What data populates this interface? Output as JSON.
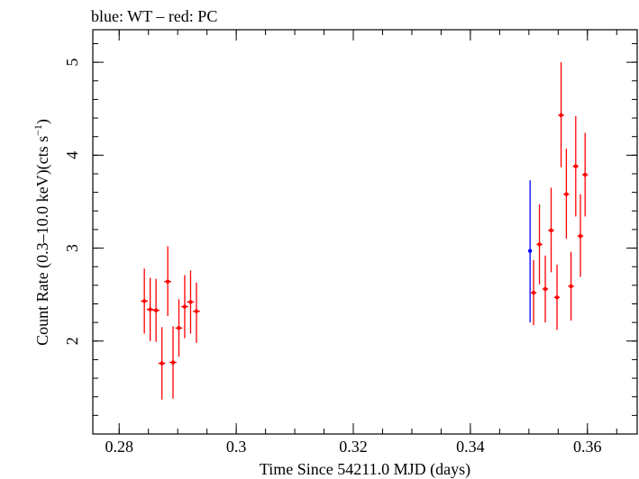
{
  "chart_data": {
    "type": "scatter",
    "title": "blue: WT – red: PC",
    "xlabel": "Time Since 54211.0 MJD (days)",
    "ylabel_parts": {
      "main": "Count Rate (0.3–10.0 keV)(cts s",
      "sup": "−1",
      "end": ")"
    },
    "xlim": [
      0.2755,
      0.3685
    ],
    "ylim": [
      1.0,
      5.35
    ],
    "x_ticks_major": [
      0.28,
      0.3,
      0.32,
      0.34,
      0.36
    ],
    "x_tick_labels": [
      "0.28",
      "0.3",
      "0.32",
      "0.34",
      "0.36"
    ],
    "x_ticks_minor_step": 0.005,
    "y_ticks_major": [
      2,
      3,
      4,
      5
    ],
    "y_tick_labels": [
      "2",
      "3",
      "4",
      "5"
    ],
    "y_ticks_minor_step": 0.2,
    "series": [
      {
        "color": "#0000ff",
        "points": [
          {
            "x": 0.3502,
            "xerr": 0.0002,
            "y": 2.97,
            "ylo": 2.2,
            "yhi": 3.73
          }
        ]
      },
      {
        "color": "#ff0000",
        "points": [
          {
            "x": 0.2843,
            "xerr": 0.0006,
            "y": 2.43,
            "ylo": 2.08,
            "yhi": 2.78
          },
          {
            "x": 0.2853,
            "xerr": 0.0006,
            "y": 2.34,
            "ylo": 2.0,
            "yhi": 2.68
          },
          {
            "x": 0.2863,
            "xerr": 0.0006,
            "y": 2.33,
            "ylo": 1.99,
            "yhi": 2.67
          },
          {
            "x": 0.2873,
            "xerr": 0.0006,
            "y": 1.76,
            "ylo": 1.37,
            "yhi": 2.15
          },
          {
            "x": 0.2883,
            "xerr": 0.0006,
            "y": 2.64,
            "ylo": 2.27,
            "yhi": 3.02
          },
          {
            "x": 0.2892,
            "xerr": 0.0006,
            "y": 1.77,
            "ylo": 1.38,
            "yhi": 2.16
          },
          {
            "x": 0.2902,
            "xerr": 0.0006,
            "y": 2.14,
            "ylo": 1.83,
            "yhi": 2.45
          },
          {
            "x": 0.2912,
            "xerr": 0.0006,
            "y": 2.37,
            "ylo": 2.03,
            "yhi": 2.71
          },
          {
            "x": 0.2922,
            "xerr": 0.0006,
            "y": 2.42,
            "ylo": 2.08,
            "yhi": 2.76
          },
          {
            "x": 0.2932,
            "xerr": 0.0006,
            "y": 2.32,
            "ylo": 1.98,
            "yhi": 2.63
          },
          {
            "x": 0.3508,
            "xerr": 0.0005,
            "y": 2.52,
            "ylo": 2.17,
            "yhi": 2.87
          },
          {
            "x": 0.3518,
            "xerr": 0.0005,
            "y": 3.04,
            "ylo": 2.61,
            "yhi": 3.47
          },
          {
            "x": 0.3528,
            "xerr": 0.0005,
            "y": 2.56,
            "ylo": 2.2,
            "yhi": 2.92
          },
          {
            "x": 0.3538,
            "xerr": 0.0005,
            "y": 3.19,
            "ylo": 2.74,
            "yhi": 3.65
          },
          {
            "x": 0.3548,
            "xerr": 0.0005,
            "y": 2.47,
            "ylo": 2.12,
            "yhi": 2.82
          },
          {
            "x": 0.3555,
            "xerr": 0.0005,
            "y": 4.43,
            "ylo": 3.87,
            "yhi": 5.0
          },
          {
            "x": 0.3564,
            "xerr": 0.0005,
            "y": 3.58,
            "ylo": 3.1,
            "yhi": 4.07
          },
          {
            "x": 0.3572,
            "xerr": 0.0005,
            "y": 2.59,
            "ylo": 2.22,
            "yhi": 2.96
          },
          {
            "x": 0.358,
            "xerr": 0.0005,
            "y": 3.88,
            "ylo": 3.34,
            "yhi": 4.42
          },
          {
            "x": 0.3588,
            "xerr": 0.0005,
            "y": 3.13,
            "ylo": 2.69,
            "yhi": 3.58
          },
          {
            "x": 0.3596,
            "xerr": 0.0005,
            "y": 3.79,
            "ylo": 3.34,
            "yhi": 4.24
          }
        ]
      }
    ]
  }
}
